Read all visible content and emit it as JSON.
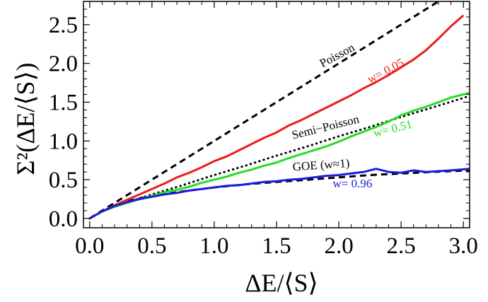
{
  "chart_data": {
    "type": "line",
    "xlabel": "ΔE/⟨S⟩",
    "ylabel": "Σ²(ΔE/⟨S⟩)",
    "xlim": [
      -0.05,
      3.05
    ],
    "ylim": [
      -0.12,
      2.8
    ],
    "x_ticks": [
      "0.0",
      "0.5",
      "1.0",
      "1.5",
      "2.0",
      "2.5",
      "3.0"
    ],
    "y_ticks": [
      "0.0",
      "0.5",
      "1.0",
      "1.5",
      "2.0",
      "2.5"
    ],
    "grid": false,
    "series": [
      {
        "kind": "reference",
        "style": "dashed",
        "color": "#000000",
        "x": [
          0,
          3.05
        ],
        "y": [
          0,
          3.05
        ]
      },
      {
        "kind": "reference",
        "style": "dotted",
        "color": "#000000",
        "x": [
          0,
          0.1,
          0.2,
          0.3,
          0.4,
          0.5,
          0.75,
          1.0,
          1.25,
          1.5,
          1.75,
          2.0,
          2.25,
          2.5,
          2.75,
          3.05
        ],
        "y": [
          0,
          0.09,
          0.16,
          0.21,
          0.26,
          0.31,
          0.43,
          0.56,
          0.68,
          0.81,
          0.93,
          1.06,
          1.18,
          1.31,
          1.43,
          1.58
        ]
      },
      {
        "kind": "reference",
        "style": "dashed",
        "color": "#000000",
        "x": [
          0,
          0.1,
          0.2,
          0.3,
          0.4,
          0.5,
          0.75,
          1.0,
          1.25,
          1.5,
          1.75,
          2.0,
          2.25,
          2.5,
          2.75,
          3.05
        ],
        "y": [
          0,
          0.1,
          0.17,
          0.22,
          0.26,
          0.29,
          0.35,
          0.4,
          0.44,
          0.47,
          0.5,
          0.53,
          0.56,
          0.58,
          0.6,
          0.62
        ]
      },
      {
        "kind": "data",
        "color": "#ee1c1c",
        "x": [
          0,
          0.1,
          0.2,
          0.3,
          0.4,
          0.5,
          0.6,
          0.7,
          0.8,
          0.9,
          1.0,
          1.1,
          1.2,
          1.3,
          1.4,
          1.5,
          1.6,
          1.7,
          1.8,
          1.9,
          2.0,
          2.1,
          2.2,
          2.3,
          2.4,
          2.5,
          2.6,
          2.7,
          2.8,
          2.9,
          3.0
        ],
        "y": [
          0,
          0.09,
          0.17,
          0.24,
          0.31,
          0.38,
          0.45,
          0.53,
          0.59,
          0.66,
          0.74,
          0.8,
          0.88,
          0.96,
          1.04,
          1.11,
          1.2,
          1.27,
          1.35,
          1.43,
          1.51,
          1.59,
          1.68,
          1.76,
          1.85,
          1.95,
          2.05,
          2.17,
          2.32,
          2.48,
          2.62
        ]
      },
      {
        "kind": "data",
        "color": "#22dd22",
        "x": [
          0,
          0.1,
          0.2,
          0.3,
          0.4,
          0.5,
          0.6,
          0.7,
          0.8,
          0.9,
          1.0,
          1.1,
          1.2,
          1.3,
          1.4,
          1.5,
          1.6,
          1.7,
          1.8,
          1.9,
          2.0,
          2.1,
          2.2,
          2.3,
          2.4,
          2.5,
          2.6,
          2.7,
          2.8,
          2.9,
          3.05
        ],
        "y": [
          0,
          0.09,
          0.15,
          0.2,
          0.25,
          0.29,
          0.34,
          0.37,
          0.41,
          0.46,
          0.5,
          0.54,
          0.59,
          0.63,
          0.68,
          0.72,
          0.78,
          0.83,
          0.88,
          0.93,
          0.99,
          1.06,
          1.12,
          1.18,
          1.25,
          1.33,
          1.39,
          1.44,
          1.5,
          1.56,
          1.62
        ]
      },
      {
        "kind": "data",
        "color": "#1c1cdd",
        "x": [
          0,
          0.1,
          0.2,
          0.3,
          0.4,
          0.5,
          0.6,
          0.7,
          0.8,
          0.9,
          1.0,
          1.1,
          1.2,
          1.3,
          1.4,
          1.5,
          1.6,
          1.7,
          1.8,
          1.9,
          2.0,
          2.1,
          2.2,
          2.3,
          2.4,
          2.5,
          2.6,
          2.7,
          2.8,
          2.9,
          3.05
        ],
        "y": [
          0,
          0.09,
          0.16,
          0.21,
          0.25,
          0.28,
          0.31,
          0.33,
          0.36,
          0.38,
          0.4,
          0.42,
          0.43,
          0.45,
          0.47,
          0.48,
          0.5,
          0.51,
          0.53,
          0.55,
          0.56,
          0.58,
          0.6,
          0.64,
          0.6,
          0.59,
          0.62,
          0.6,
          0.61,
          0.62,
          0.64
        ]
      }
    ],
    "annotations": [
      {
        "text": "Poisson",
        "color": "#000000",
        "x": 2.0,
        "y": 2.06,
        "rotate": -28
      },
      {
        "text": "w= 0.05",
        "color": "#ee1c1c",
        "x": 2.39,
        "y": 1.86,
        "rotate": -28
      },
      {
        "text": "Semi−Poisson",
        "color": "#000000",
        "x": 1.9,
        "y": 1.13,
        "rotate": -14
      },
      {
        "text": "w= 0.51",
        "color": "#22dd22",
        "x": 2.44,
        "y": 1.11,
        "rotate": -14
      },
      {
        "text": "GOE (w≈1)",
        "color": "#000000",
        "x": 1.86,
        "y": 0.64,
        "rotate": -4
      },
      {
        "text": "w= 0.96",
        "color": "#1c1cdd",
        "x": 2.11,
        "y": 0.4,
        "rotate": 0
      }
    ]
  }
}
